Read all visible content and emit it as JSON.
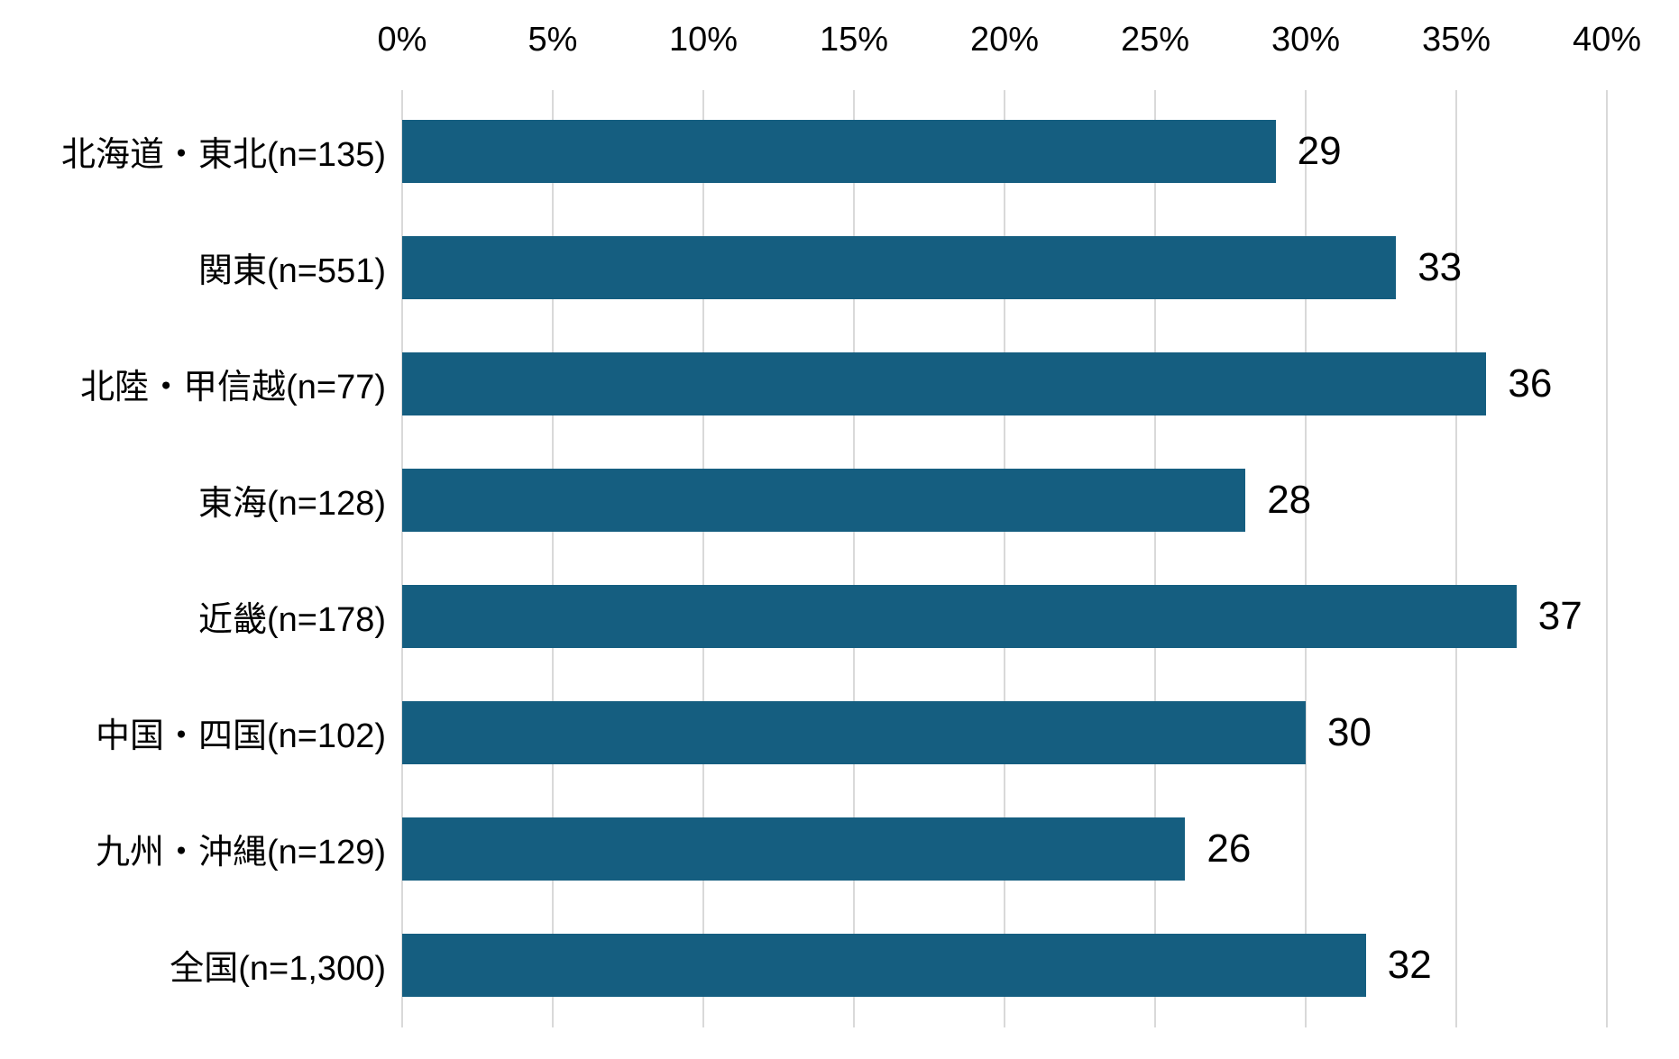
{
  "chart_data": {
    "type": "bar",
    "orientation": "horizontal",
    "title": "",
    "categories": [
      "北海道・東北(n=135)",
      "関東(n=551)",
      "北陸・甲信越(n=77)",
      "東海(n=128)",
      "近畿(n=178)",
      "中国・四国(n=102)",
      "九州・沖縄(n=129)",
      "全国(n=1,300)"
    ],
    "values": [
      29,
      33,
      36,
      28,
      37,
      30,
      26,
      32
    ],
    "xlabel": "",
    "ylabel": "",
    "xlim": [
      0,
      40
    ],
    "x_tick_step": 5,
    "x_tick_labels": [
      "0%",
      "5%",
      "10%",
      "15%",
      "20%",
      "25%",
      "30%",
      "35%",
      "40%"
    ],
    "grid": true,
    "legend": "none",
    "axis_position": "top",
    "data_labels": "outside-end",
    "colors": {
      "bar": "#155e80",
      "gridline": "#d9d9d9",
      "text": "#000000",
      "background": "#ffffff"
    }
  }
}
